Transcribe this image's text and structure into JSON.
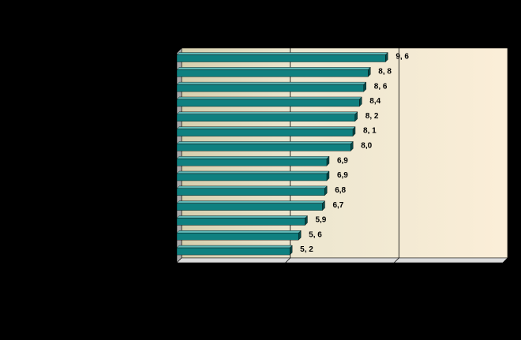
{
  "chart_data": {
    "type": "bar",
    "orientation": "horizontal",
    "values": [
      9.6,
      8.8,
      8.6,
      8.4,
      8.2,
      8.1,
      8.0,
      6.9,
      6.9,
      6.8,
      6.7,
      5.9,
      5.6,
      5.2
    ],
    "value_labels": [
      "9, 6",
      "8, 8",
      "8, 6",
      "8,4",
      "8, 2",
      "8, 1",
      "8,0",
      "6,9",
      "6,9",
      "6,8",
      "6,7",
      "5,9",
      "5, 6",
      "5, 2"
    ],
    "color": "#0f8080",
    "xlim": [
      0,
      15
    ],
    "xticks": [
      0,
      5,
      10,
      15
    ],
    "grid": true
  }
}
